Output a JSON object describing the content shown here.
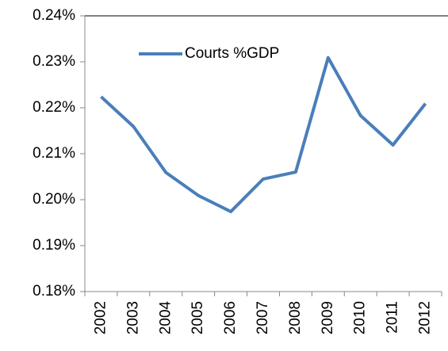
{
  "chart_data": {
    "type": "line",
    "categories": [
      "2002",
      "2003",
      "2004",
      "2005",
      "2006",
      "2007",
      "2008",
      "2009",
      "2010",
      "2011",
      "2012"
    ],
    "series": [
      {
        "name": "Courts %GDP",
        "color": "#4a7ebb",
        "values": [
          0.2224,
          0.2159,
          0.2059,
          0.2009,
          0.1974,
          0.2045,
          0.206,
          0.2309,
          0.2183,
          0.2119,
          0.2209
        ]
      }
    ],
    "ylim": [
      0.18,
      0.24
    ],
    "yticks": [
      {
        "value": 0.18,
        "label": "0.18%"
      },
      {
        "value": 0.19,
        "label": "0.19%"
      },
      {
        "value": 0.2,
        "label": "0.20%"
      },
      {
        "value": 0.21,
        "label": "0.21%"
      },
      {
        "value": 0.22,
        "label": "0.22%"
      },
      {
        "value": 0.23,
        "label": "0.23%"
      },
      {
        "value": 0.24,
        "label": "0.24%"
      }
    ],
    "legend": "top-left"
  }
}
